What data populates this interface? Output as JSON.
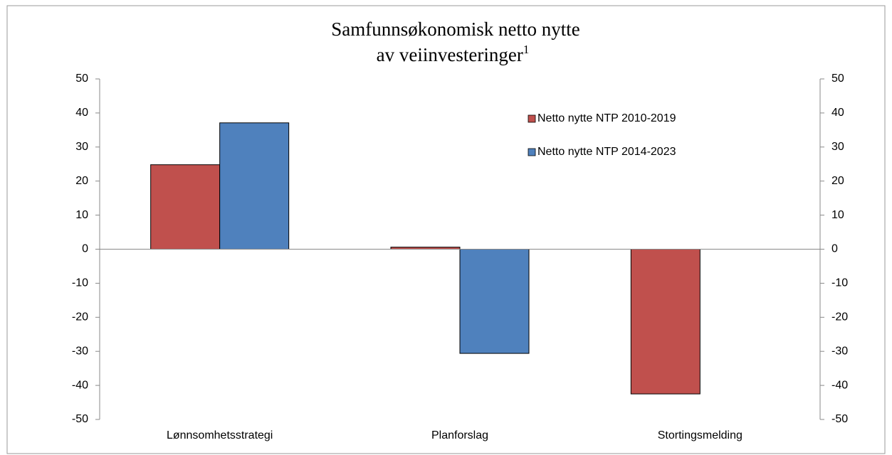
{
  "chart_data": {
    "type": "bar",
    "title_lines": [
      "Samfunnsøkonomisk netto nytte",
      "av veiinvesteringer"
    ],
    "title_footnote": "1",
    "categories": [
      "Lønnsomhetsstrategi",
      "Planforslag",
      "Stortingsmelding"
    ],
    "series": [
      {
        "name": "Netto nytte NTP 2010-2019",
        "color": "#c0504d",
        "values": [
          24.8,
          0.6,
          -42.5
        ]
      },
      {
        "name": "Netto nytte NTP 2014-2023",
        "color": "#4f81bd",
        "values": [
          37.1,
          -30.6,
          null
        ]
      }
    ],
    "ylim": [
      -50,
      50
    ],
    "yticks": [
      -50,
      -40,
      -30,
      -20,
      -10,
      0,
      10,
      20,
      30,
      40,
      50
    ],
    "y2lim": [
      -50,
      50
    ],
    "y2ticks": [
      -50,
      -40,
      -30,
      -20,
      -10,
      0,
      10,
      20,
      30,
      40,
      50
    ],
    "legend": "upper right",
    "grid": false
  }
}
